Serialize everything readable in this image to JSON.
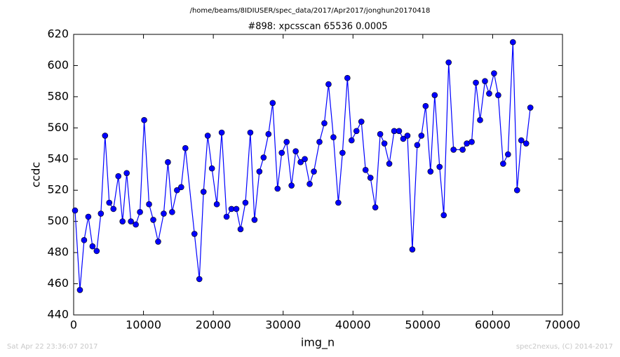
{
  "chart_data": {
    "type": "line",
    "suptitle": "/home/beams/8IDIUSER/spec_data/2017/Apr2017/jonghun20170418",
    "title": "#898: xpcsscan 65536 0.0005",
    "x_label": "img_n",
    "y_label": "ccdc",
    "timestamp": "Sat Apr 22 23:36:07 2017",
    "credit": "spec2nexus, (C) 2014-2017",
    "color": "#0000ff",
    "x": [
      200,
      900,
      1500,
      2100,
      2700,
      3300,
      3900,
      4500,
      5100,
      5700,
      6400,
      7000,
      7600,
      8200,
      8900,
      9500,
      10100,
      10800,
      11400,
      12100,
      12900,
      13500,
      14100,
      14800,
      15400,
      16000,
      17300,
      18000,
      18600,
      19200,
      19800,
      20500,
      21200,
      21900,
      22600,
      23300,
      23900,
      24600,
      25300,
      25900,
      26600,
      27200,
      27900,
      28500,
      29200,
      29800,
      30500,
      31200,
      31800,
      32500,
      33100,
      33800,
      34400,
      35200,
      35900,
      36500,
      37200,
      37900,
      38500,
      39200,
      39800,
      40500,
      41200,
      41800,
      42500,
      43200,
      43900,
      44500,
      45200,
      45900,
      46600,
      47200,
      47800,
      48500,
      49200,
      49800,
      50400,
      51100,
      51700,
      52400,
      53000,
      53700,
      54400,
      55700,
      56300,
      57000,
      57600,
      58200,
      58900,
      59500,
      60200,
      60800,
      61500,
      62200,
      62900,
      63500,
      64100,
      64800,
      65400
    ],
    "values": [
      507,
      456,
      488,
      503,
      484,
      481,
      505,
      555,
      512,
      508,
      529,
      500,
      531,
      500,
      498,
      506,
      565,
      511,
      501,
      487,
      505,
      538,
      506,
      520,
      522,
      547,
      492,
      463,
      519,
      555,
      534,
      511,
      557,
      503,
      508,
      508,
      495,
      512,
      557,
      501,
      532,
      541,
      556,
      576,
      521,
      544,
      551,
      523,
      545,
      538,
      540,
      524,
      532,
      551,
      563,
      588,
      554,
      512,
      544,
      592,
      552,
      558,
      564,
      533,
      528,
      509,
      556,
      550,
      537,
      558,
      558,
      553,
      555,
      482,
      549,
      555,
      574,
      532,
      581,
      535,
      504,
      602,
      546,
      546,
      550,
      551,
      589,
      565,
      590,
      582,
      595,
      581,
      537,
      543,
      615,
      520,
      552,
      550,
      573
    ],
    "xlim": [
      0,
      70000
    ],
    "ylim": [
      440,
      620
    ],
    "xticks": [
      0,
      10000,
      20000,
      30000,
      40000,
      50000,
      60000,
      70000
    ],
    "yticks": [
      440,
      460,
      480,
      500,
      520,
      540,
      560,
      580,
      600,
      620
    ]
  }
}
